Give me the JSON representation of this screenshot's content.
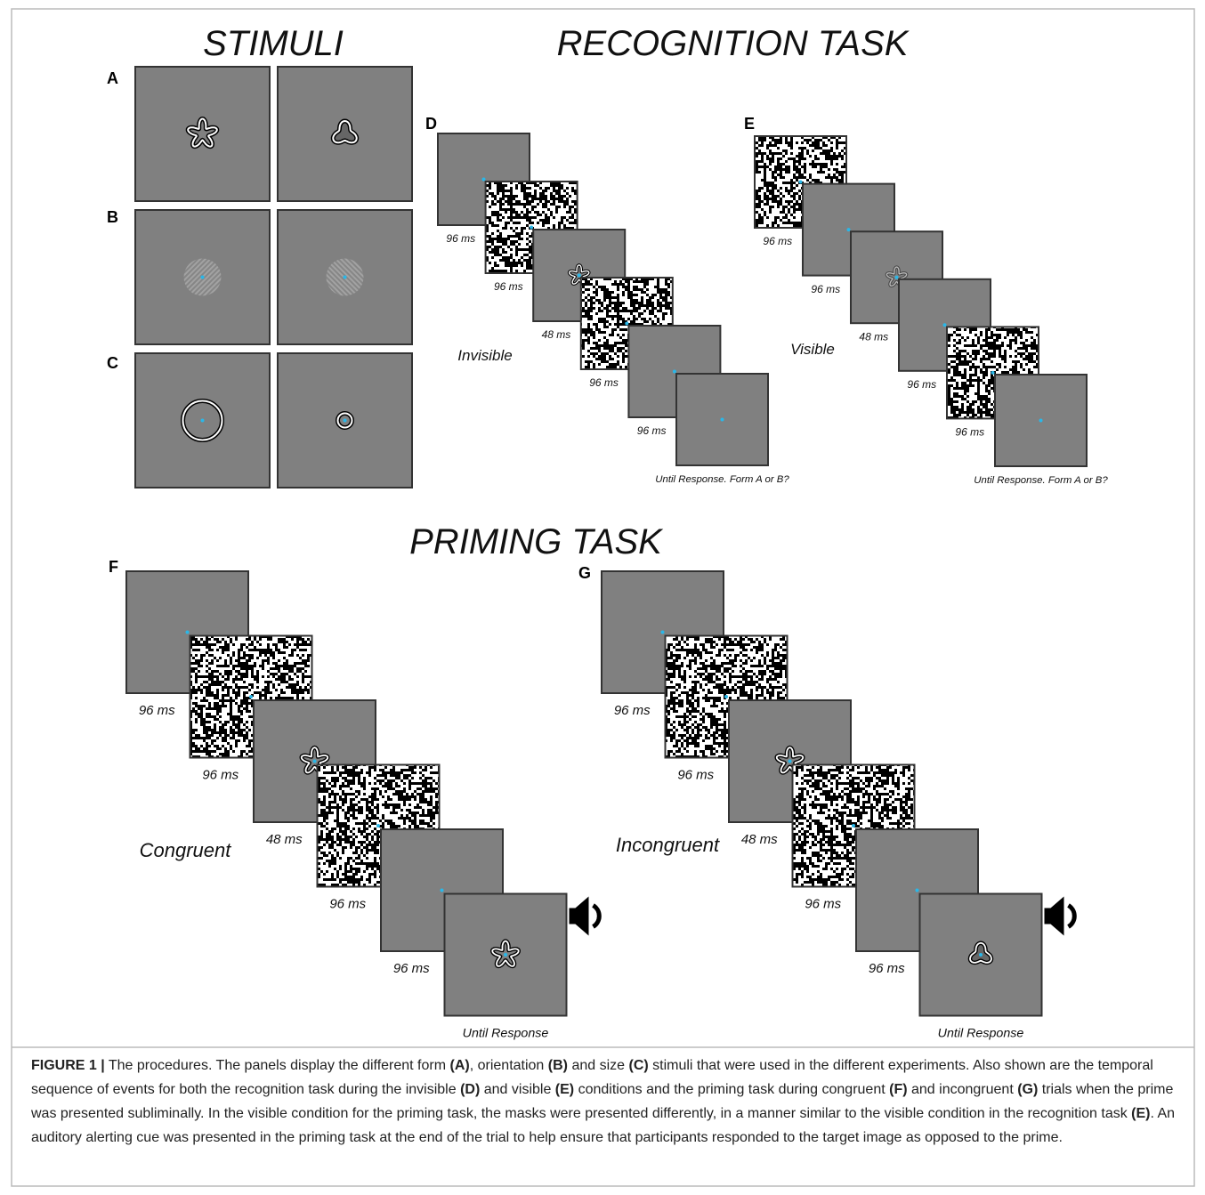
{
  "stimuli": {
    "title": "STIMULI",
    "rows": [
      "A",
      "B",
      "C"
    ]
  },
  "recognition": {
    "title": "RECOGNITION TASK",
    "panels": [
      {
        "label": "D",
        "condition": "Invisible",
        "durations": [
          "96 ms",
          "96 ms",
          "48 ms",
          "96 ms",
          "96 ms"
        ],
        "final": "Until Response. Form A or B?"
      },
      {
        "label": "E",
        "condition": "Visible",
        "durations": [
          "96 ms",
          "96 ms",
          "48 ms",
          "96 ms",
          "96 ms"
        ],
        "final": "Until Response. Form A or B?"
      }
    ]
  },
  "priming": {
    "title": "PRIMING TASK",
    "panels": [
      {
        "label": "F",
        "condition": "Congruent",
        "durations": [
          "96 ms",
          "96 ms",
          "48 ms",
          "96 ms",
          "96 ms"
        ],
        "final": "Until Response"
      },
      {
        "label": "G",
        "condition": "Incongruent",
        "durations": [
          "96 ms",
          "96 ms",
          "48 ms",
          "96 ms",
          "96 ms"
        ],
        "final": "Until Response"
      }
    ]
  },
  "caption": {
    "label": "FIGURE 1 |",
    "segments": [
      " The procedures. The panels display the different form ",
      "(A)",
      ", orientation ",
      "(B)",
      " and size ",
      "(C)",
      " stimuli that were used in the different experiments. Also shown are the temporal sequence of events for both the recognition task during the invisible ",
      "(D)",
      " and visible ",
      "(E)",
      " conditions and the priming task during congruent ",
      "(F)",
      " and incongruent ",
      "(G)",
      " trials when the prime was presented subliminally. In the visible condition for the priming task, the masks were presented differently, in a manner similar to the visible condition in the recognition task ",
      "(E)",
      ". An auditory alerting cue was presented in the priming task at the end of the trial to help ensure that participants responded to the target image as opposed to the prime."
    ]
  }
}
